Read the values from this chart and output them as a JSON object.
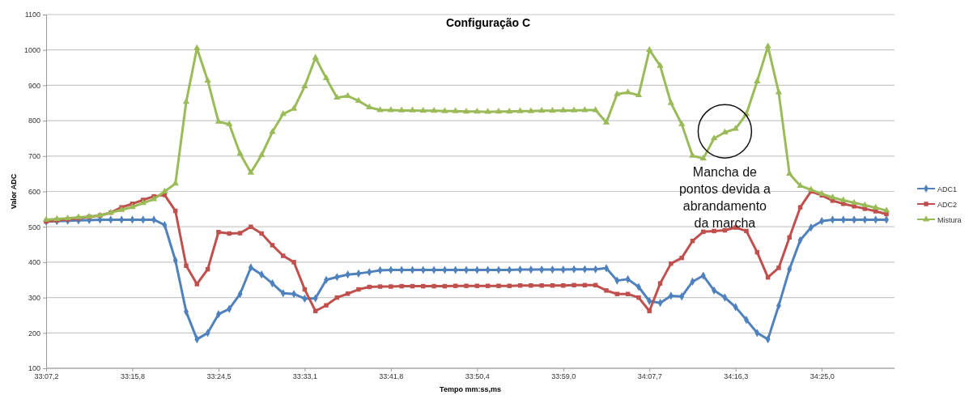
{
  "chart_data": {
    "type": "line",
    "title": "Configuração C",
    "xlabel": "Tempo mm:ss,ms",
    "ylabel": "Valor ADC",
    "categories": [
      "33:07,2",
      null,
      null,
      null,
      null,
      null,
      null,
      null,
      "33:15,8",
      null,
      null,
      null,
      null,
      null,
      null,
      null,
      "33:24,5",
      null,
      null,
      null,
      null,
      null,
      null,
      null,
      "33:33,1",
      null,
      null,
      null,
      null,
      null,
      null,
      null,
      "33:41,8",
      null,
      null,
      null,
      null,
      null,
      null,
      null,
      "33:50,4",
      null,
      null,
      null,
      null,
      null,
      null,
      null,
      "33:59,0",
      null,
      null,
      null,
      null,
      null,
      null,
      null,
      "34:07,7",
      null,
      null,
      null,
      null,
      null,
      null,
      null,
      "34:16,3",
      null,
      null,
      null,
      null,
      null,
      null,
      null,
      "34:25,0",
      null,
      null,
      null,
      null,
      null,
      null
    ],
    "ylim": [
      100,
      1100
    ],
    "yticks": [
      100,
      200,
      300,
      400,
      500,
      600,
      700,
      800,
      900,
      1000,
      1100
    ],
    "grid": "y",
    "legend": "right",
    "annotations": [
      "Mancha de pontos devida a abrandamento da marcha"
    ],
    "series": [
      {
        "name": "ADC1",
        "color": "#4f81bd",
        "marker": "diamond",
        "values": [
          515,
          516,
          517,
          518,
          519,
          520,
          520,
          520,
          520,
          520,
          520,
          505,
          405,
          260,
          182,
          200,
          253,
          268,
          310,
          385,
          365,
          340,
          312,
          310,
          297,
          298,
          350,
          358,
          365,
          368,
          372,
          377,
          378,
          378,
          378,
          378,
          378,
          378,
          378,
          378,
          378,
          378,
          378,
          378,
          379,
          379,
          379,
          379,
          379,
          380,
          380,
          380,
          383,
          348,
          352,
          330,
          290,
          285,
          305,
          303,
          345,
          362,
          320,
          300,
          273,
          237,
          200,
          182,
          277,
          380,
          462,
          498,
          516,
          520,
          520,
          520,
          520,
          520,
          520
        ]
      },
      {
        "name": "ADC2",
        "color": "#c0504d",
        "marker": "square",
        "values": [
          515,
          518,
          521,
          524,
          528,
          532,
          540,
          555,
          565,
          576,
          586,
          590,
          545,
          390,
          338,
          380,
          485,
          481,
          482,
          500,
          481,
          448,
          418,
          400,
          323,
          262,
          278,
          300,
          311,
          323,
          330,
          331,
          331,
          332,
          332,
          332,
          332,
          332,
          333,
          333,
          333,
          333,
          333,
          333,
          334,
          334,
          334,
          334,
          334,
          335,
          335,
          335,
          320,
          310,
          310,
          300,
          262,
          340,
          396,
          412,
          460,
          486,
          488,
          490,
          498,
          488,
          428,
          357,
          384,
          470,
          555,
          600,
          589,
          574,
          565,
          558,
          551,
          544,
          536
        ]
      },
      {
        "name": "Mistura",
        "color": "#9bbb59",
        "marker": "triangle",
        "values": [
          520,
          522,
          524,
          527,
          529,
          532,
          540,
          548,
          556,
          567,
          578,
          600,
          622,
          853,
          1005,
          913,
          797,
          790,
          707,
          653,
          703,
          768,
          819,
          834,
          897,
          978,
          920,
          865,
          870,
          856,
          838,
          830,
          830,
          829,
          829,
          828,
          828,
          827,
          827,
          826,
          826,
          825,
          826,
          826,
          827,
          827,
          828,
          828,
          829,
          829,
          830,
          830,
          795,
          875,
          880,
          872,
          1000,
          955,
          850,
          790,
          701,
          693,
          750,
          767,
          777,
          819,
          911,
          1010,
          880,
          650,
          616,
          605,
          593,
          583,
          575,
          568,
          561,
          554,
          546
        ]
      }
    ]
  }
}
